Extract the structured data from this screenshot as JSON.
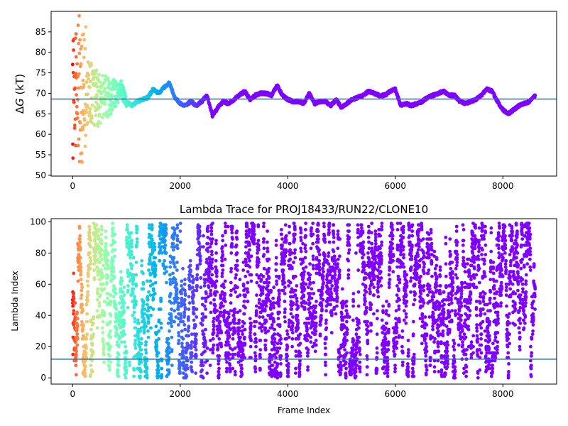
{
  "chart_data": [
    {
      "type": "scatter",
      "title": "",
      "xlabel": "",
      "ylabel_prefix": "Δ",
      "ylabel_var": "G",
      "ylabel_suffix": " (kT)",
      "xlim": [
        -400,
        9000
      ],
      "ylim": [
        49.8,
        90
      ],
      "xticks": [
        0,
        2000,
        4000,
        6000,
        8000
      ],
      "yticks": [
        50,
        55,
        60,
        65,
        70,
        75,
        80,
        85
      ],
      "reference_line": 68.6,
      "reference_line_color": "#1f77b4",
      "colormap": "rainbow (early frames red/orange, late frames violet)",
      "grid": false,
      "legend": "none",
      "x_range": [
        0,
        8600
      ],
      "trace_keypoints": [
        [
          0,
          70
        ],
        [
          100,
          72
        ],
        [
          200,
          69
        ],
        [
          300,
          70
        ],
        [
          400,
          69
        ],
        [
          500,
          68
        ],
        [
          600,
          69
        ],
        [
          700,
          69
        ],
        [
          800,
          70
        ],
        [
          900,
          71
        ],
        [
          1000,
          68
        ],
        [
          1100,
          67
        ],
        [
          1200,
          68
        ],
        [
          1300,
          68.5
        ],
        [
          1400,
          69
        ],
        [
          1500,
          71
        ],
        [
          1600,
          70
        ],
        [
          1700,
          71.5
        ],
        [
          1800,
          72.5
        ],
        [
          1900,
          69
        ],
        [
          2000,
          67.5
        ],
        [
          2100,
          67
        ],
        [
          2200,
          68
        ],
        [
          2300,
          67
        ],
        [
          2400,
          68
        ],
        [
          2500,
          69.5
        ],
        [
          2600,
          64.5
        ],
        [
          2700,
          66.5
        ],
        [
          2800,
          68
        ],
        [
          2900,
          67.5
        ],
        [
          3000,
          68.5
        ],
        [
          3100,
          69.5
        ],
        [
          3200,
          70.5
        ],
        [
          3300,
          68.5
        ],
        [
          3400,
          69.5
        ],
        [
          3500,
          70
        ],
        [
          3600,
          70
        ],
        [
          3700,
          69.5
        ],
        [
          3800,
          72
        ],
        [
          3900,
          69.5
        ],
        [
          4000,
          68.5
        ],
        [
          4100,
          68
        ],
        [
          4200,
          68
        ],
        [
          4300,
          67.5
        ],
        [
          4400,
          70
        ],
        [
          4500,
          67.5
        ],
        [
          4600,
          68
        ],
        [
          4700,
          68
        ],
        [
          4800,
          67
        ],
        [
          4900,
          68.5
        ],
        [
          5000,
          66.5
        ],
        [
          5100,
          67.5
        ],
        [
          5200,
          68.5
        ],
        [
          5300,
          69
        ],
        [
          5400,
          69.5
        ],
        [
          5500,
          70.5
        ],
        [
          5600,
          70
        ],
        [
          5700,
          69.5
        ],
        [
          5800,
          69.5
        ],
        [
          5900,
          70.5
        ],
        [
          6000,
          71
        ],
        [
          6100,
          67
        ],
        [
          6200,
          67.5
        ],
        [
          6300,
          67
        ],
        [
          6400,
          67.5
        ],
        [
          6500,
          68
        ],
        [
          6600,
          69
        ],
        [
          6700,
          69.5
        ],
        [
          6800,
          70
        ],
        [
          6900,
          70.5
        ],
        [
          7000,
          69.5
        ],
        [
          7100,
          69.5
        ],
        [
          7200,
          68
        ],
        [
          7300,
          67.5
        ],
        [
          7400,
          68
        ],
        [
          7500,
          68.5
        ],
        [
          7600,
          69.5
        ],
        [
          7700,
          71
        ],
        [
          7800,
          70.5
        ],
        [
          7900,
          68
        ],
        [
          8000,
          66
        ],
        [
          8100,
          65
        ],
        [
          8200,
          66
        ],
        [
          8300,
          67
        ],
        [
          8400,
          67.5
        ],
        [
          8500,
          68
        ],
        [
          8600,
          69.5
        ]
      ]
    },
    {
      "type": "scatter",
      "title": "Lambda Trace for PROJ18433/RUN22/CLONE10",
      "xlabel": "Frame Index",
      "ylabel": "Lambda Index",
      "xlim": [
        -400,
        9000
      ],
      "ylim": [
        -4,
        102
      ],
      "xticks": [
        0,
        2000,
        4000,
        6000,
        8000
      ],
      "yticks": [
        0,
        20,
        40,
        60,
        80,
        100
      ],
      "reference_line": 12,
      "reference_line_color": "#1f77b4",
      "colormap": "rainbow (early frames red/orange, late frames violet)",
      "grid": false,
      "legend": "none",
      "x_range": [
        0,
        8600
      ],
      "lambda_range": [
        0,
        99
      ]
    }
  ]
}
